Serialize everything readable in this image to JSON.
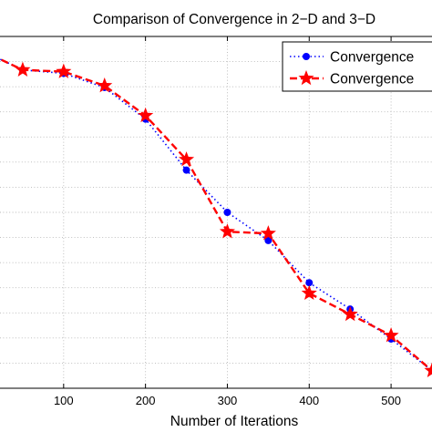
{
  "chart_data": {
    "type": "line",
    "title": "Comparison of Convergence in 2−D and 3−D",
    "xlabel": "Number of Iterations",
    "ylabel": "",
    "xlim": [
      0,
      550
    ],
    "ylim": [
      0,
      1
    ],
    "xticks": [
      100,
      200,
      300,
      400,
      500
    ],
    "grid": true,
    "legend_position": "top-right",
    "series": [
      {
        "name": "Convergence",
        "color": "#0000ff",
        "line_style": "dotted",
        "marker": "circle",
        "x": [
          0,
          50,
          100,
          150,
          200,
          250,
          300,
          350,
          400,
          450,
          500,
          550
        ],
        "y": [
          0.96,
          0.905,
          0.895,
          0.855,
          0.765,
          0.62,
          0.5,
          0.42,
          0.3,
          0.225,
          0.14,
          0.05
        ]
      },
      {
        "name": "Convergence",
        "color": "#ff0000",
        "line_style": "dashed",
        "marker": "star",
        "x": [
          0,
          50,
          100,
          150,
          200,
          250,
          300,
          350,
          400,
          450,
          500,
          550
        ],
        "y": [
          0.96,
          0.905,
          0.9,
          0.86,
          0.775,
          0.65,
          0.445,
          0.44,
          0.27,
          0.21,
          0.15,
          0.05
        ]
      }
    ]
  }
}
